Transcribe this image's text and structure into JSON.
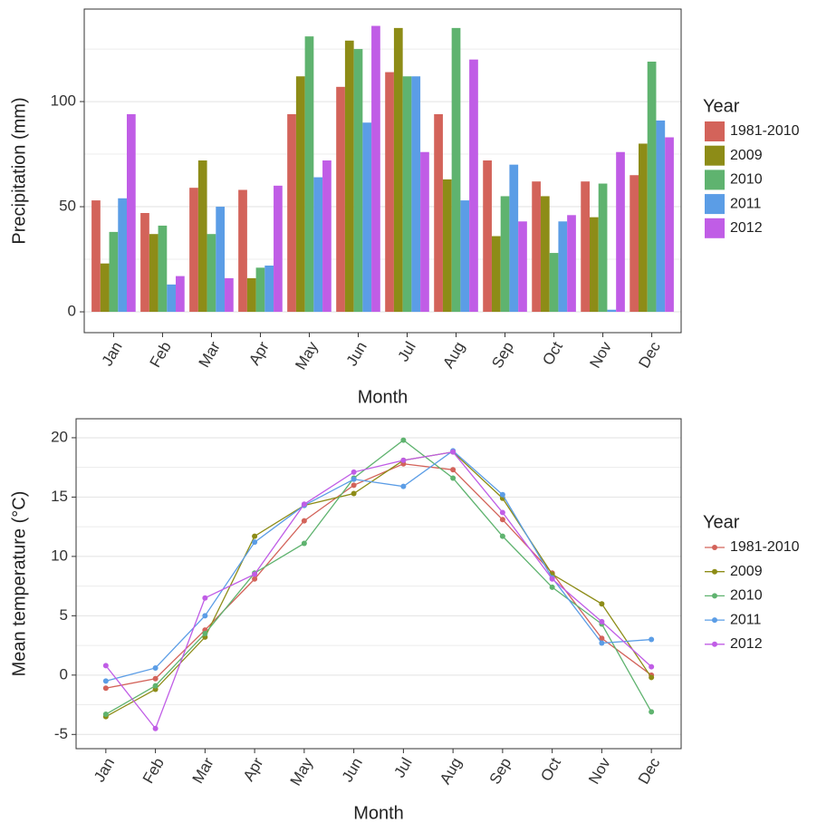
{
  "chart_data": [
    {
      "type": "bar",
      "xaxis_title": "Month",
      "yaxis_title": "Precipitation (mm)",
      "legend_title": "Year",
      "categories": [
        "Jan",
        "Feb",
        "Mar",
        "Apr",
        "May",
        "Jun",
        "Jul",
        "Aug",
        "Sep",
        "Oct",
        "Nov",
        "Dec"
      ],
      "series": [
        {
          "name": "1981-2010",
          "color": "#d3635a",
          "values": [
            53,
            47,
            59,
            58,
            94,
            107,
            114,
            94,
            72,
            62,
            62,
            65
          ]
        },
        {
          "name": "2009",
          "color": "#8d8c17",
          "values": [
            23,
            37,
            72,
            16,
            112,
            129,
            135,
            63,
            36,
            55,
            45,
            80
          ]
        },
        {
          "name": "2010",
          "color": "#5fb36f",
          "values": [
            38,
            41,
            37,
            21,
            131,
            125,
            112,
            135,
            55,
            28,
            61,
            119
          ]
        },
        {
          "name": "2011",
          "color": "#5b9de6",
          "values": [
            54,
            13,
            50,
            22,
            64,
            90,
            112,
            53,
            70,
            43,
            1,
            91
          ]
        },
        {
          "name": "2012",
          "color": "#c05de6",
          "values": [
            94,
            17,
            16,
            60,
            72,
            136,
            76,
            120,
            43,
            46,
            76,
            83
          ]
        }
      ],
      "ylim": [
        -9.9,
        144
      ],
      "yticks": [
        0,
        50,
        100
      ],
      "grid": true
    },
    {
      "type": "line",
      "xaxis_title": "Month",
      "yaxis_title": "Mean temperature (°C)",
      "legend_title": "Year",
      "categories": [
        "Jan",
        "Feb",
        "Mar",
        "Apr",
        "May",
        "Jun",
        "Jul",
        "Aug",
        "Sep",
        "Oct",
        "Nov",
        "Dec"
      ],
      "series": [
        {
          "name": "1981-2010",
          "color": "#d3635a",
          "values": [
            -1.1,
            -0.3,
            3.8,
            8.1,
            13.0,
            16.0,
            17.8,
            17.3,
            13.1,
            8.6,
            3.1,
            0.0
          ]
        },
        {
          "name": "2009",
          "color": "#8d8c17",
          "values": [
            -3.5,
            -1.2,
            3.2,
            11.7,
            14.3,
            15.3,
            18.1,
            18.8,
            14.9,
            8.5,
            6.0,
            -0.2
          ]
        },
        {
          "name": "2010",
          "color": "#5fb36f",
          "values": [
            -3.3,
            -0.9,
            3.5,
            8.6,
            11.1,
            16.6,
            19.8,
            16.6,
            11.7,
            7.4,
            4.3,
            -3.1
          ]
        },
        {
          "name": "2011",
          "color": "#5b9de6",
          "values": [
            -0.5,
            0.6,
            5.0,
            11.2,
            14.3,
            16.5,
            15.9,
            18.9,
            15.2,
            8.2,
            2.7,
            3.0
          ]
        },
        {
          "name": "2012",
          "color": "#c05de6",
          "values": [
            0.8,
            -4.5,
            6.5,
            8.5,
            14.4,
            17.1,
            18.1,
            18.8,
            13.7,
            8.1,
            4.5,
            0.7
          ]
        }
      ],
      "ylim": [
        -6.2,
        21.6
      ],
      "yticks": [
        -5,
        0,
        5,
        10,
        15,
        20
      ],
      "grid": true
    }
  ]
}
